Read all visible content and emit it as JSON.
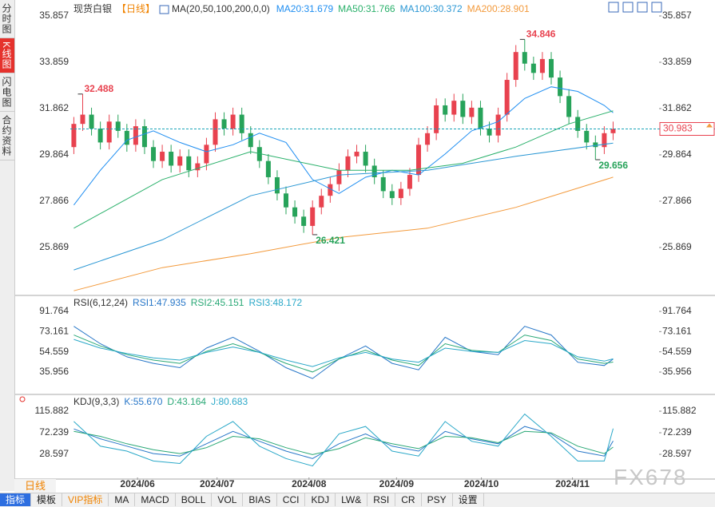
{
  "sidebar_tabs": [
    "分时图",
    "K线图",
    "闪电图",
    "合约资料"
  ],
  "period_button": "日线",
  "toolbar_tabs": [
    "指标",
    "模板",
    "VIP指标",
    "MA",
    "MACD",
    "BOLL",
    "VOL",
    "BIAS",
    "CCI",
    "KDJ",
    "LW&",
    "RSI",
    "CR",
    "PSY",
    "设置"
  ],
  "watermark": "FX678",
  "chart_data": [
    {
      "type": "candlestick",
      "title": "现货白银",
      "period": "【日线】",
      "indicator": "MA(20,50,100,200,0,0)",
      "up_color": "#e8424f",
      "down_color": "#27a35a",
      "open": [
        30.2,
        31.2,
        31.6,
        31.0,
        30.4,
        31.3,
        30.9,
        30.3,
        31.1,
        30.2,
        29.6,
        30.0,
        29.4,
        29.8,
        29.2,
        29.5,
        30.3,
        31.4,
        31.0,
        31.6,
        30.8,
        30.2,
        29.6,
        28.9,
        28.2,
        27.6,
        27.2,
        26.8,
        27.6,
        28.1,
        28.6,
        29.2,
        29.8,
        30.0,
        29.4,
        28.9,
        28.3,
        28.0,
        28.4,
        29.0,
        30.3,
        30.8,
        32.0,
        31.6,
        32.2,
        31.5,
        31.9,
        31.0,
        30.7,
        31.6,
        33.1,
        34.3,
        33.8,
        33.4,
        34.0,
        33.2,
        32.4,
        31.5,
        30.9,
        30.4,
        30.2,
        30.8
      ],
      "high": [
        31.5,
        32.488,
        31.9,
        31.3,
        31.6,
        31.6,
        31.2,
        31.4,
        31.4,
        30.5,
        30.3,
        30.3,
        30.1,
        30.1,
        29.8,
        30.6,
        31.7,
        31.7,
        31.9,
        31.9,
        31.1,
        30.5,
        29.9,
        29.2,
        28.5,
        27.9,
        27.5,
        27.9,
        28.4,
        28.9,
        29.5,
        30.1,
        30.3,
        30.3,
        29.7,
        29.2,
        28.6,
        28.7,
        29.3,
        30.6,
        31.1,
        32.3,
        32.3,
        32.5,
        32.5,
        32.2,
        32.2,
        31.3,
        31.9,
        33.4,
        34.6,
        34.846,
        34.1,
        34.3,
        34.3,
        33.5,
        32.7,
        31.8,
        31.2,
        30.7,
        31.1,
        31.3
      ],
      "low": [
        29.9,
        30.9,
        30.7,
        30.1,
        30.1,
        30.6,
        30.0,
        30.0,
        29.9,
        29.3,
        29.3,
        29.1,
        29.1,
        28.9,
        28.9,
        29.2,
        30.0,
        30.7,
        30.7,
        30.5,
        29.9,
        29.3,
        28.6,
        27.9,
        27.3,
        26.9,
        26.5,
        26.421,
        27.3,
        27.8,
        28.3,
        28.9,
        29.5,
        29.1,
        28.6,
        28.0,
        27.7,
        27.7,
        28.1,
        28.7,
        30.0,
        30.5,
        31.3,
        31.3,
        31.2,
        31.2,
        30.7,
        30.4,
        30.4,
        31.3,
        32.8,
        33.5,
        33.1,
        33.1,
        32.9,
        32.1,
        31.2,
        30.6,
        30.1,
        29.656,
        29.9,
        30.5
      ],
      "close": [
        31.2,
        31.6,
        31.0,
        30.4,
        31.3,
        30.9,
        30.3,
        31.1,
        30.2,
        29.6,
        30.0,
        29.4,
        29.8,
        29.2,
        29.5,
        30.3,
        31.4,
        31.0,
        31.6,
        30.8,
        30.2,
        29.6,
        28.9,
        28.2,
        27.6,
        27.2,
        26.8,
        27.6,
        28.1,
        28.6,
        29.2,
        29.8,
        30.0,
        29.4,
        28.9,
        28.3,
        28.0,
        28.4,
        29.0,
        30.3,
        30.8,
        32.0,
        31.6,
        32.2,
        31.5,
        31.9,
        31.0,
        30.7,
        31.6,
        33.1,
        34.3,
        33.8,
        33.4,
        34.0,
        33.2,
        32.4,
        31.5,
        30.9,
        30.4,
        30.2,
        30.8,
        30.983
      ],
      "high_labels": [
        1,
        51
      ],
      "low_labels": [
        27,
        59
      ],
      "last_price_line": true,
      "series": [
        {
          "name": "MA20:31.679",
          "color": "#1f8ef1",
          "x": [
            0,
            3,
            6,
            9,
            12,
            15,
            18,
            21,
            24,
            27,
            30,
            33,
            36,
            39,
            42,
            45,
            48,
            51,
            54,
            57,
            60,
            61
          ],
          "values": [
            27.7,
            29.2,
            30.5,
            30.9,
            30.4,
            30.0,
            30.3,
            30.8,
            30.4,
            28.8,
            28.2,
            28.9,
            29.2,
            29.0,
            29.9,
            30.9,
            31.3,
            32.3,
            32.8,
            32.6,
            32.0,
            31.679
          ]
        },
        {
          "name": "MA50:31.766",
          "color": "#29b06a",
          "x": [
            0,
            10,
            20,
            30,
            38,
            44,
            50,
            56,
            61
          ],
          "values": [
            26.7,
            28.8,
            30.0,
            29.2,
            29.2,
            29.5,
            30.2,
            31.2,
            31.766
          ]
        },
        {
          "name": "MA100:30.372",
          "color": "#2a97d4",
          "x": [
            0,
            10,
            20,
            30,
            40,
            50,
            61
          ],
          "values": [
            24.9,
            26.2,
            28.1,
            29.0,
            29.2,
            29.8,
            30.372
          ]
        },
        {
          "name": "MA200:28.901",
          "color": "#f39a3c",
          "x": [
            0,
            10,
            20,
            30,
            40,
            50,
            61
          ],
          "values": [
            24.0,
            25.0,
            25.6,
            26.3,
            26.7,
            27.6,
            28.901
          ]
        }
      ],
      "xlim": [
        -0.4,
        66.2
      ],
      "ylim": [
        23.87,
        36.27
      ],
      "yticks": [
        35.857,
        33.859,
        31.862,
        29.864,
        27.866,
        25.869
      ],
      "xticks": [
        {
          "value": 7.2,
          "label": "2024/06"
        },
        {
          "value": 16.2,
          "label": "2024/07"
        },
        {
          "value": 26.6,
          "label": "2024/08"
        },
        {
          "value": 36.5,
          "label": "2024/09"
        },
        {
          "value": 46.1,
          "label": "2024/10"
        },
        {
          "value": 56.4,
          "label": "2024/11"
        }
      ]
    },
    {
      "type": "line",
      "title": "RSI(6,12,24)",
      "x": [
        0,
        3,
        6,
        9,
        12,
        15,
        18,
        21,
        24,
        27,
        30,
        33,
        36,
        39,
        42,
        45,
        48,
        51,
        54,
        57,
        60,
        61
      ],
      "series": [
        {
          "name": "RSI1:47.935",
          "color": "#2877c8",
          "values": [
            78,
            62,
            50,
            44,
            40,
            58,
            68,
            55,
            40,
            30,
            48,
            60,
            44,
            38,
            68,
            55,
            52,
            78,
            70,
            45,
            42,
            47.935
          ]
        },
        {
          "name": "RSI2:45.151",
          "color": "#2aa876",
          "values": [
            70,
            60,
            52,
            47,
            44,
            55,
            62,
            54,
            44,
            36,
            48,
            56,
            47,
            42,
            62,
            56,
            54,
            70,
            65,
            48,
            44,
            45.151
          ]
        },
        {
          "name": "RSI3:48.172",
          "color": "#2aa8c8",
          "values": [
            66,
            58,
            53,
            49,
            47,
            54,
            59,
            54,
            47,
            41,
            49,
            54,
            48,
            45,
            58,
            55,
            54,
            65,
            62,
            50,
            46,
            48.172
          ]
        }
      ],
      "xlim": [
        -0.4,
        66.2
      ],
      "ylim": [
        16.87,
        104.98
      ],
      "yticks": [
        91.764,
        73.161,
        54.559,
        35.956
      ]
    },
    {
      "type": "line",
      "title": "KDJ(9,3,3)",
      "x": [
        0,
        3,
        6,
        9,
        12,
        15,
        18,
        21,
        24,
        27,
        30,
        33,
        36,
        39,
        42,
        45,
        48,
        51,
        54,
        57,
        60,
        61
      ],
      "series": [
        {
          "name": "K:55.670",
          "color": "#2877c8",
          "values": [
            80,
            60,
            45,
            30,
            25,
            50,
            75,
            55,
            35,
            20,
            50,
            70,
            45,
            35,
            75,
            60,
            50,
            85,
            70,
            35,
            25,
            55.67
          ]
        },
        {
          "name": "D:43.164",
          "color": "#2aa876",
          "values": [
            75,
            65,
            50,
            38,
            30,
            42,
            65,
            60,
            42,
            28,
            40,
            62,
            50,
            40,
            65,
            62,
            52,
            75,
            72,
            45,
            30,
            43.164
          ]
        },
        {
          "name": "J:80.683",
          "color": "#2aa8c8",
          "values": [
            95,
            45,
            35,
            15,
            10,
            65,
            95,
            45,
            20,
            5,
            70,
            85,
            35,
            25,
            95,
            55,
            45,
            110,
            65,
            15,
            15,
            80.683
          ]
        }
      ],
      "xlim": [
        -0.4,
        66.2
      ],
      "ylim": [
        -18.3,
        146.6
      ],
      "yticks": [
        115.882,
        72.239,
        28.597
      ]
    }
  ]
}
